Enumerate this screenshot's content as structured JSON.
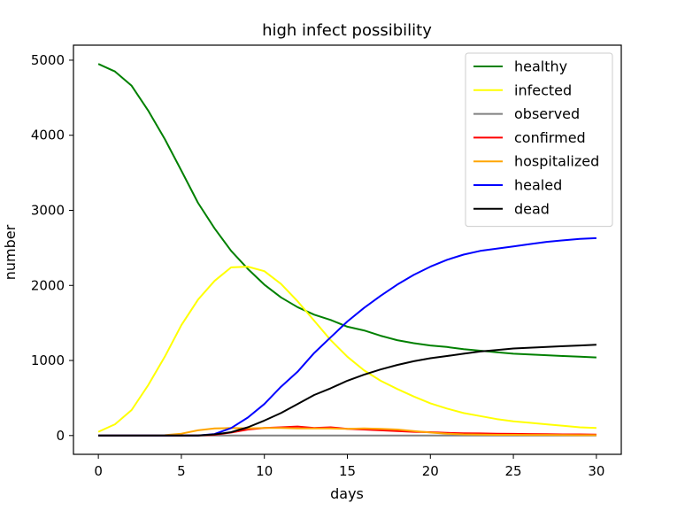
{
  "chart_data": {
    "type": "line",
    "title": "high infect possibility",
    "xlabel": "days",
    "ylabel": "number",
    "xlim": [
      -1.5,
      31.5
    ],
    "ylim": [
      -250,
      5200
    ],
    "xticks": [
      0,
      5,
      10,
      15,
      20,
      25,
      30
    ],
    "yticks": [
      0,
      1000,
      2000,
      3000,
      4000,
      5000
    ],
    "grid": false,
    "legend_position": "top-right",
    "x": [
      0,
      1,
      2,
      3,
      4,
      5,
      6,
      7,
      8,
      9,
      10,
      11,
      12,
      13,
      14,
      15,
      16,
      17,
      18,
      19,
      20,
      21,
      22,
      23,
      24,
      25,
      26,
      27,
      28,
      29,
      30
    ],
    "series": [
      {
        "name": "healthy",
        "color": "#008000",
        "values": [
          4950,
          4850,
          4660,
          4330,
          3950,
          3530,
          3100,
          2760,
          2460,
          2220,
          2010,
          1840,
          1710,
          1610,
          1540,
          1450,
          1400,
          1330,
          1270,
          1230,
          1200,
          1180,
          1150,
          1130,
          1110,
          1090,
          1080,
          1070,
          1060,
          1050,
          1040
        ]
      },
      {
        "name": "infected",
        "color": "#ffff00",
        "values": [
          50,
          150,
          340,
          670,
          1050,
          1470,
          1810,
          2060,
          2240,
          2250,
          2190,
          2020,
          1790,
          1530,
          1270,
          1050,
          870,
          730,
          620,
          520,
          430,
          360,
          300,
          260,
          220,
          190,
          170,
          150,
          130,
          110,
          100
        ]
      },
      {
        "name": "observed",
        "color": "#808080",
        "values": [
          0,
          0,
          0,
          0,
          0,
          0,
          0,
          0,
          0,
          0,
          0,
          0,
          0,
          0,
          0,
          0,
          0,
          0,
          0,
          0,
          0,
          0,
          0,
          0,
          0,
          0,
          0,
          0,
          0,
          0,
          0
        ]
      },
      {
        "name": "confirmed",
        "color": "#ff0000",
        "values": [
          0,
          0,
          0,
          0,
          0,
          0,
          0,
          10,
          40,
          80,
          100,
          110,
          120,
          100,
          110,
          90,
          80,
          70,
          60,
          50,
          45,
          35,
          30,
          28,
          25,
          22,
          20,
          18,
          15,
          15,
          12
        ]
      },
      {
        "name": "hospitalized",
        "color": "#ffa500",
        "values": [
          0,
          0,
          0,
          0,
          5,
          25,
          70,
          95,
          100,
          95,
          100,
          100,
          95,
          95,
          95,
          90,
          95,
          90,
          80,
          60,
          40,
          25,
          15,
          12,
          10,
          10,
          8,
          8,
          6,
          5,
          5
        ]
      },
      {
        "name": "healed",
        "color": "#0000ff",
        "values": [
          0,
          0,
          0,
          0,
          0,
          0,
          0,
          20,
          100,
          240,
          420,
          650,
          850,
          1100,
          1310,
          1520,
          1700,
          1860,
          2010,
          2140,
          2250,
          2340,
          2410,
          2460,
          2490,
          2520,
          2550,
          2580,
          2600,
          2620,
          2630
        ]
      },
      {
        "name": "dead",
        "color": "#000000",
        "values": [
          0,
          0,
          0,
          0,
          0,
          0,
          0,
          15,
          45,
          110,
          200,
          300,
          420,
          540,
          630,
          730,
          810,
          880,
          940,
          990,
          1030,
          1060,
          1090,
          1120,
          1140,
          1160,
          1170,
          1180,
          1190,
          1200,
          1210
        ]
      }
    ]
  }
}
